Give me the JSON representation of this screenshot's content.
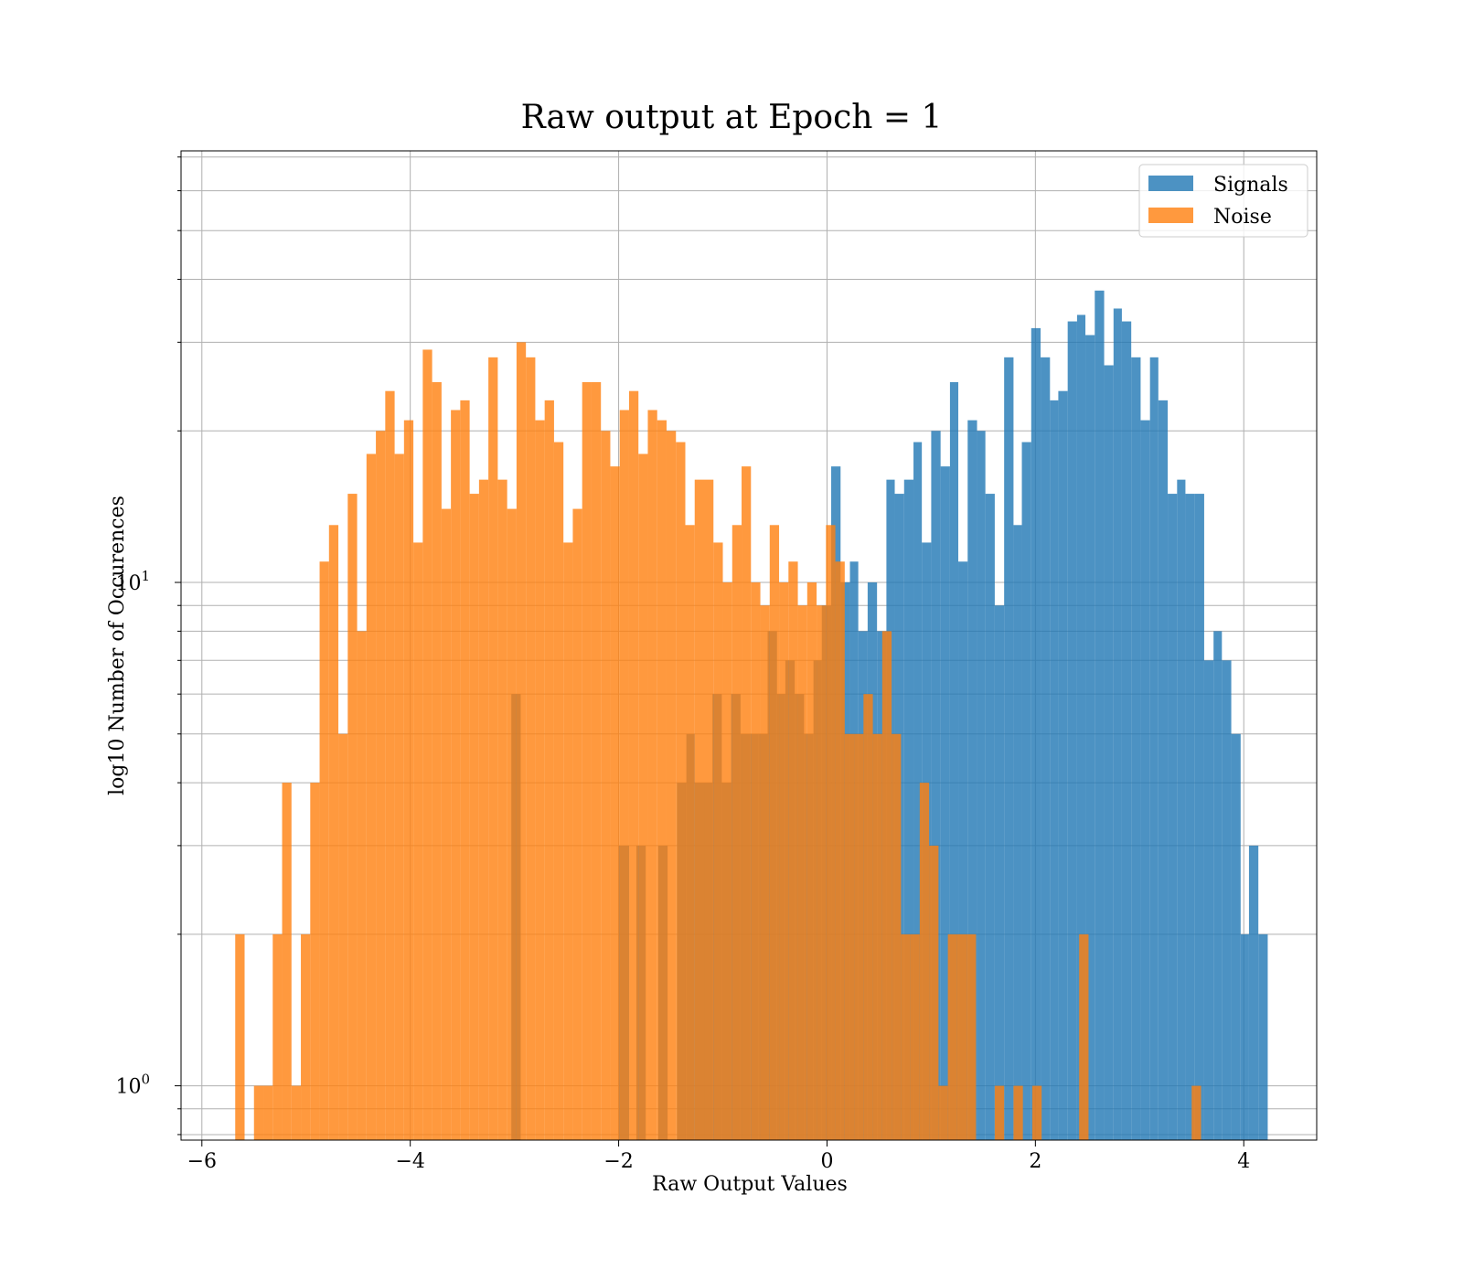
{
  "chart_data": {
    "type": "histogram",
    "title": "Raw output at Epoch = 1",
    "xlabel": "Raw Output Values",
    "ylabel": "log10 Number of Occurences",
    "yscale": "log",
    "xlim": [
      -6.2,
      4.7
    ],
    "ylim": [
      0.78,
      72
    ],
    "x_ticks": [
      -6,
      -4,
      -2,
      0,
      2,
      4
    ],
    "x_tick_labels": [
      "−6",
      "−4",
      "−2",
      "0",
      "2",
      "4"
    ],
    "y_major_ticks": [
      1,
      10
    ],
    "y_tick_labels": [
      {
        "base": "10",
        "exp": "0"
      },
      {
        "base": "10",
        "exp": "1"
      }
    ],
    "grid": true,
    "legend_position": "top-right",
    "colors": {
      "signals": "#1f77b4",
      "noise": "#ff7f0e",
      "grid": "#b0b0b0",
      "axes": "#000000"
    },
    "series": [
      {
        "name": "Signals",
        "alpha": 0.8,
        "color": "#1f77b4",
        "bins": [
          [
            -3.03,
            -2.94,
            6
          ],
          [
            -2.0,
            -1.9,
            3
          ],
          [
            -1.83,
            -1.74,
            3
          ],
          [
            -1.62,
            -1.53,
            3
          ],
          [
            -1.44,
            -1.35,
            4
          ],
          [
            -1.35,
            -1.27,
            5
          ],
          [
            -1.27,
            -1.18,
            4
          ],
          [
            -1.18,
            -1.1,
            4
          ],
          [
            -1.1,
            -1.01,
            6
          ],
          [
            -1.01,
            -0.92,
            4
          ],
          [
            -0.92,
            -0.83,
            6
          ],
          [
            -0.83,
            -0.74,
            5
          ],
          [
            -0.74,
            -0.66,
            5
          ],
          [
            -0.66,
            -0.57,
            5
          ],
          [
            -0.57,
            -0.48,
            8
          ],
          [
            -0.48,
            -0.4,
            6
          ],
          [
            -0.4,
            -0.31,
            7
          ],
          [
            -0.31,
            -0.22,
            6
          ],
          [
            -0.22,
            -0.13,
            5
          ],
          [
            -0.13,
            -0.05,
            7
          ],
          [
            -0.05,
            0.04,
            9
          ],
          [
            0.04,
            0.13,
            17
          ],
          [
            0.13,
            0.22,
            10
          ],
          [
            0.22,
            0.3,
            11
          ],
          [
            0.3,
            0.39,
            8
          ],
          [
            0.39,
            0.48,
            10
          ],
          [
            0.48,
            0.57,
            8
          ],
          [
            0.57,
            0.65,
            16
          ],
          [
            0.65,
            0.74,
            15
          ],
          [
            0.74,
            0.83,
            16
          ],
          [
            0.83,
            0.91,
            19
          ],
          [
            0.91,
            1.0,
            12
          ],
          [
            1.0,
            1.09,
            20
          ],
          [
            1.09,
            1.18,
            17
          ],
          [
            1.18,
            1.26,
            25
          ],
          [
            1.26,
            1.35,
            11
          ],
          [
            1.35,
            1.44,
            21
          ],
          [
            1.44,
            1.52,
            20
          ],
          [
            1.52,
            1.61,
            15
          ],
          [
            1.61,
            1.7,
            9
          ],
          [
            1.7,
            1.79,
            28
          ],
          [
            1.79,
            1.87,
            13
          ],
          [
            1.87,
            1.96,
            19
          ],
          [
            1.96,
            2.05,
            32
          ],
          [
            2.05,
            2.14,
            28
          ],
          [
            2.14,
            2.22,
            23
          ],
          [
            2.22,
            2.31,
            24
          ],
          [
            2.31,
            2.4,
            33
          ],
          [
            2.4,
            2.48,
            34
          ],
          [
            2.48,
            2.57,
            31
          ],
          [
            2.57,
            2.66,
            38
          ],
          [
            2.66,
            2.75,
            27
          ],
          [
            2.75,
            2.83,
            35
          ],
          [
            2.83,
            2.92,
            33
          ],
          [
            2.92,
            3.01,
            28
          ],
          [
            3.01,
            3.1,
            21
          ],
          [
            3.1,
            3.18,
            28
          ],
          [
            3.18,
            3.27,
            23
          ],
          [
            3.27,
            3.36,
            15
          ],
          [
            3.36,
            3.44,
            16
          ],
          [
            3.44,
            3.53,
            15
          ],
          [
            3.53,
            3.62,
            15
          ],
          [
            3.62,
            3.71,
            7
          ],
          [
            3.71,
            3.79,
            8
          ],
          [
            3.79,
            3.88,
            7
          ],
          [
            3.88,
            3.97,
            5
          ],
          [
            3.97,
            4.05,
            2
          ],
          [
            4.05,
            4.14,
            3
          ],
          [
            4.14,
            4.23,
            2
          ]
        ]
      },
      {
        "name": "Noise",
        "alpha": 0.8,
        "color": "#ff7f0e",
        "bins": [
          [
            -5.68,
            -5.59,
            2
          ],
          [
            -5.5,
            -5.41,
            1
          ],
          [
            -5.41,
            -5.32,
            1
          ],
          [
            -5.32,
            -5.23,
            2
          ],
          [
            -5.23,
            -5.14,
            4
          ],
          [
            -5.14,
            -5.05,
            1
          ],
          [
            -5.05,
            -4.96,
            2
          ],
          [
            -4.96,
            -4.87,
            4
          ],
          [
            -4.87,
            -4.78,
            11
          ],
          [
            -4.78,
            -4.69,
            13
          ],
          [
            -4.69,
            -4.6,
            5
          ],
          [
            -4.6,
            -4.51,
            15
          ],
          [
            -4.51,
            -4.42,
            8
          ],
          [
            -4.42,
            -4.33,
            18
          ],
          [
            -4.33,
            -4.24,
            20
          ],
          [
            -4.24,
            -4.15,
            24
          ],
          [
            -4.15,
            -4.06,
            18
          ],
          [
            -4.06,
            -3.97,
            21
          ],
          [
            -3.97,
            -3.88,
            12
          ],
          [
            -3.88,
            -3.79,
            29
          ],
          [
            -3.79,
            -3.7,
            25
          ],
          [
            -3.7,
            -3.61,
            14
          ],
          [
            -3.61,
            -3.52,
            22
          ],
          [
            -3.52,
            -3.43,
            23
          ],
          [
            -3.43,
            -3.34,
            15
          ],
          [
            -3.34,
            -3.25,
            16
          ],
          [
            -3.25,
            -3.16,
            28
          ],
          [
            -3.16,
            -3.07,
            16
          ],
          [
            -3.07,
            -2.98,
            14
          ],
          [
            -2.98,
            -2.89,
            30
          ],
          [
            -2.89,
            -2.8,
            28
          ],
          [
            -2.8,
            -2.71,
            21
          ],
          [
            -2.71,
            -2.62,
            23
          ],
          [
            -2.62,
            -2.53,
            19
          ],
          [
            -2.53,
            -2.44,
            12
          ],
          [
            -2.44,
            -2.35,
            14
          ],
          [
            -2.35,
            -2.26,
            25
          ],
          [
            -2.26,
            -2.17,
            25
          ],
          [
            -2.17,
            -2.08,
            20
          ],
          [
            -2.08,
            -1.99,
            17
          ],
          [
            -1.99,
            -1.9,
            22
          ],
          [
            -1.9,
            -1.81,
            24
          ],
          [
            -1.81,
            -1.72,
            18
          ],
          [
            -1.72,
            -1.63,
            22
          ],
          [
            -1.63,
            -1.54,
            21
          ],
          [
            -1.54,
            -1.45,
            20
          ],
          [
            -1.45,
            -1.36,
            19
          ],
          [
            -1.36,
            -1.27,
            13
          ],
          [
            -1.27,
            -1.18,
            16
          ],
          [
            -1.18,
            -1.09,
            16
          ],
          [
            -1.09,
            -1.0,
            12
          ],
          [
            -1.0,
            -0.91,
            10
          ],
          [
            -0.91,
            -0.82,
            13
          ],
          [
            -0.82,
            -0.73,
            17
          ],
          [
            -0.73,
            -0.64,
            10
          ],
          [
            -0.64,
            -0.55,
            9
          ],
          [
            -0.55,
            -0.46,
            13
          ],
          [
            -0.46,
            -0.37,
            10
          ],
          [
            -0.37,
            -0.28,
            11
          ],
          [
            -0.28,
            -0.19,
            9
          ],
          [
            -0.19,
            -0.1,
            10
          ],
          [
            -0.1,
            -0.01,
            9
          ],
          [
            -0.01,
            0.08,
            13
          ],
          [
            0.08,
            0.17,
            11
          ],
          [
            0.17,
            0.26,
            5
          ],
          [
            0.26,
            0.35,
            5
          ],
          [
            0.35,
            0.44,
            6
          ],
          [
            0.44,
            0.53,
            5
          ],
          [
            0.53,
            0.62,
            8
          ],
          [
            0.62,
            0.71,
            5
          ],
          [
            0.71,
            0.8,
            2
          ],
          [
            0.8,
            0.89,
            2
          ],
          [
            0.89,
            0.98,
            4
          ],
          [
            0.98,
            1.07,
            3
          ],
          [
            1.07,
            1.16,
            1
          ],
          [
            1.16,
            1.25,
            2
          ],
          [
            1.25,
            1.34,
            2
          ],
          [
            1.34,
            1.43,
            2
          ],
          [
            1.61,
            1.7,
            1
          ],
          [
            1.79,
            1.88,
            1
          ],
          [
            1.97,
            2.06,
            1
          ],
          [
            2.42,
            2.51,
            2
          ],
          [
            3.5,
            3.59,
            1
          ]
        ]
      }
    ]
  }
}
